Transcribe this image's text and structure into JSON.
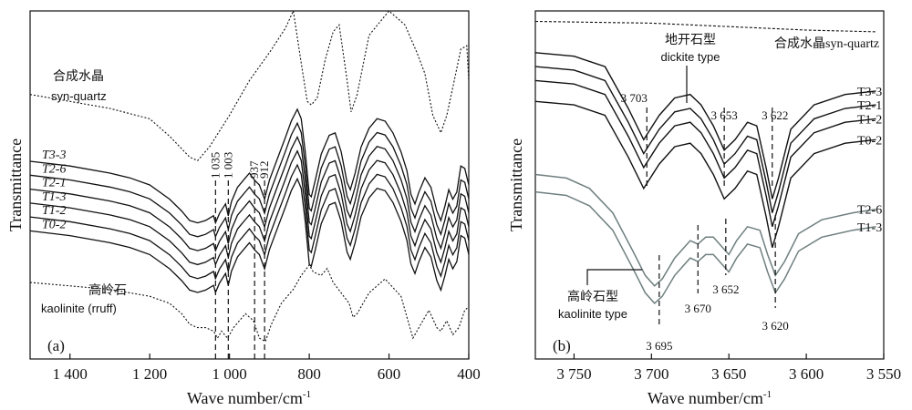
{
  "chart_data": [
    {
      "panel_label": "(a)",
      "type": "line",
      "xlabel": "Wave number/cm",
      "xlabel_sup": "-1",
      "ylabel": "Transmittance",
      "xlim": [
        1500,
        400
      ],
      "x_reversed": true,
      "xticks": [
        {
          "v": 1400,
          "label": "1 400"
        },
        {
          "v": 1200,
          "label": "1 200"
        },
        {
          "v": 1000,
          "label": "1 000"
        },
        {
          "v": 800,
          "label": "800"
        },
        {
          "v": 600,
          "label": "600"
        },
        {
          "v": 400,
          "label": "400"
        }
      ],
      "reference_spectra": [
        {
          "label_cn": "合成水晶",
          "label_en": "syn-quartz",
          "style": "dotted",
          "points": [
            [
              1500,
              0.76
            ],
            [
              1400,
              0.74
            ],
            [
              1300,
              0.72
            ],
            [
              1200,
              0.69
            ],
            [
              1150,
              0.64
            ],
            [
              1100,
              0.58
            ],
            [
              1080,
              0.57
            ],
            [
              1050,
              0.61
            ],
            [
              1000,
              0.7
            ],
            [
              950,
              0.8
            ],
            [
              900,
              0.88
            ],
            [
              860,
              0.95
            ],
            [
              840,
              1.0
            ],
            [
              820,
              0.85
            ],
            [
              805,
              0.74
            ],
            [
              795,
              0.73
            ],
            [
              780,
              0.75
            ],
            [
              760,
              0.86
            ],
            [
              740,
              0.94
            ],
            [
              725,
              0.96
            ],
            [
              705,
              0.8
            ],
            [
              695,
              0.71
            ],
            [
              680,
              0.76
            ],
            [
              650,
              0.93
            ],
            [
              600,
              1.0
            ],
            [
              560,
              0.96
            ],
            [
              530,
              0.88
            ],
            [
              510,
              0.82
            ],
            [
              490,
              0.7
            ],
            [
              470,
              0.65
            ],
            [
              455,
              0.7
            ],
            [
              440,
              0.78
            ],
            [
              420,
              0.89
            ],
            [
              405,
              0.9
            ],
            [
              400,
              0.8
            ]
          ]
        },
        {
          "label_cn": "高岭石",
          "label_en": "kaolinite (rruff)",
          "style": "dotted",
          "points": [
            [
              1500,
              0.22
            ],
            [
              1400,
              0.21
            ],
            [
              1300,
              0.2
            ],
            [
              1200,
              0.18
            ],
            [
              1150,
              0.16
            ],
            [
              1120,
              0.13
            ],
            [
              1100,
              0.1
            ],
            [
              1080,
              0.09
            ],
            [
              1060,
              0.09
            ],
            [
              1040,
              0.08
            ],
            [
              1030,
              0.06
            ],
            [
              1020,
              0.08
            ],
            [
              1005,
              0.06
            ],
            [
              990,
              0.09
            ],
            [
              960,
              0.13
            ],
            [
              940,
              0.11
            ],
            [
              925,
              0.06
            ],
            [
              910,
              0.05
            ],
            [
              895,
              0.1
            ],
            [
              870,
              0.16
            ],
            [
              840,
              0.2
            ],
            [
              820,
              0.24
            ],
            [
              800,
              0.27
            ],
            [
              790,
              0.25
            ],
            [
              770,
              0.24
            ],
            [
              755,
              0.26
            ],
            [
              740,
              0.22
            ],
            [
              700,
              0.16
            ],
            [
              690,
              0.12
            ],
            [
              680,
              0.13
            ],
            [
              650,
              0.19
            ],
            [
              610,
              0.23
            ],
            [
              570,
              0.18
            ],
            [
              550,
              0.1
            ],
            [
              540,
              0.06
            ],
            [
              525,
              0.09
            ],
            [
              500,
              0.14
            ],
            [
              480,
              0.09
            ],
            [
              470,
              0.08
            ],
            [
              455,
              0.11
            ],
            [
              440,
              0.07
            ],
            [
              425,
              0.09
            ],
            [
              410,
              0.14
            ],
            [
              400,
              0.15
            ]
          ]
        }
      ],
      "series": [
        {
          "name": "T3-3",
          "offset": 0.22
        },
        {
          "name": "T2-6",
          "offset": 0.18
        },
        {
          "name": "T2-1",
          "offset": 0.14
        },
        {
          "name": "T1-3",
          "offset": 0.1
        },
        {
          "name": "T1-2",
          "offset": 0.06
        },
        {
          "name": "T0-2",
          "offset": 0.02
        }
      ],
      "sample_profile": [
        [
          1500,
          0.6
        ],
        [
          1400,
          0.58
        ],
        [
          1300,
          0.55
        ],
        [
          1250,
          0.53
        ],
        [
          1200,
          0.5
        ],
        [
          1150,
          0.44
        ],
        [
          1120,
          0.39
        ],
        [
          1100,
          0.35
        ],
        [
          1080,
          0.34
        ],
        [
          1060,
          0.35
        ],
        [
          1040,
          0.37
        ],
        [
          1035,
          0.34
        ],
        [
          1025,
          0.38
        ],
        [
          1010,
          0.42
        ],
        [
          1003,
          0.37
        ],
        [
          995,
          0.43
        ],
        [
          980,
          0.49
        ],
        [
          960,
          0.53
        ],
        [
          950,
          0.55
        ],
        [
          937,
          0.52
        ],
        [
          925,
          0.5
        ],
        [
          912,
          0.44
        ],
        [
          900,
          0.52
        ],
        [
          880,
          0.61
        ],
        [
          860,
          0.7
        ],
        [
          845,
          0.77
        ],
        [
          830,
          0.82
        ],
        [
          820,
          0.78
        ],
        [
          810,
          0.64
        ],
        [
          800,
          0.46
        ],
        [
          795,
          0.45
        ],
        [
          785,
          0.52
        ],
        [
          770,
          0.63
        ],
        [
          750,
          0.71
        ],
        [
          735,
          0.72
        ],
        [
          720,
          0.64
        ],
        [
          705,
          0.51
        ],
        [
          697,
          0.48
        ],
        [
          685,
          0.55
        ],
        [
          670,
          0.66
        ],
        [
          650,
          0.74
        ],
        [
          630,
          0.78
        ],
        [
          610,
          0.77
        ],
        [
          590,
          0.72
        ],
        [
          570,
          0.64
        ],
        [
          555,
          0.56
        ],
        [
          545,
          0.46
        ],
        [
          535,
          0.42
        ],
        [
          525,
          0.47
        ],
        [
          510,
          0.53
        ],
        [
          495,
          0.49
        ],
        [
          480,
          0.39
        ],
        [
          470,
          0.35
        ],
        [
          460,
          0.41
        ],
        [
          450,
          0.48
        ],
        [
          440,
          0.44
        ],
        [
          430,
          0.47
        ],
        [
          420,
          0.58
        ],
        [
          410,
          0.57
        ],
        [
          400,
          0.5
        ]
      ],
      "markers": [
        {
          "x": 1035,
          "label": "1 035"
        },
        {
          "x": 1003,
          "label": "1 003"
        },
        {
          "x": 937,
          "label": "937"
        },
        {
          "x": 912,
          "label": "912"
        }
      ]
    },
    {
      "panel_label": "(b)",
      "type": "line",
      "xlabel": "Wave number/cm",
      "xlabel_sup": "-1",
      "ylabel": "Transmittance",
      "xlim": [
        3775,
        3550
      ],
      "x_reversed": true,
      "xticks": [
        {
          "v": 3750,
          "label": "3 750"
        },
        {
          "v": 3700,
          "label": "3 700"
        },
        {
          "v": 3650,
          "label": "3 650"
        },
        {
          "v": 3600,
          "label": "3 600"
        },
        {
          "v": 3550,
          "label": "3 550"
        }
      ],
      "reference_spectra": [
        {
          "label_cn": "合成水晶",
          "label_en": "syn-quartz",
          "style": "dotted",
          "points": [
            [
              3775,
              0.97
            ],
            [
              3700,
              0.965
            ],
            [
              3650,
              0.955
            ],
            [
              3600,
              0.945
            ],
            [
              3555,
              0.94
            ]
          ]
        }
      ],
      "dickite_series": [
        {
          "name": "T3-3",
          "offset": 0.1
        },
        {
          "name": "T2-1",
          "offset": 0.06
        },
        {
          "name": "T1-2",
          "offset": 0.02
        },
        {
          "name": "T0-2",
          "offset": -0.04
        }
      ],
      "dickite_profile": [
        [
          3775,
          0.78
        ],
        [
          3750,
          0.77
        ],
        [
          3730,
          0.74
        ],
        [
          3715,
          0.62
        ],
        [
          3705,
          0.53
        ],
        [
          3695,
          0.6
        ],
        [
          3685,
          0.65
        ],
        [
          3675,
          0.66
        ],
        [
          3668,
          0.63
        ],
        [
          3660,
          0.57
        ],
        [
          3653,
          0.5
        ],
        [
          3646,
          0.53
        ],
        [
          3638,
          0.58
        ],
        [
          3632,
          0.57
        ],
        [
          3626,
          0.45
        ],
        [
          3622,
          0.36
        ],
        [
          3618,
          0.42
        ],
        [
          3610,
          0.56
        ],
        [
          3595,
          0.63
        ],
        [
          3575,
          0.66
        ],
        [
          3555,
          0.67
        ]
      ],
      "kaolinite_series": [
        {
          "name": "T2-6",
          "offset": 0.0,
          "color": "#6f7f7f"
        },
        {
          "name": "T1-3",
          "offset": -0.05,
          "color": "#6f7f7f"
        }
      ],
      "kaolinite_profile": [
        [
          3775,
          0.53
        ],
        [
          3755,
          0.52
        ],
        [
          3740,
          0.49
        ],
        [
          3725,
          0.42
        ],
        [
          3712,
          0.31
        ],
        [
          3704,
          0.24
        ],
        [
          3698,
          0.21
        ],
        [
          3693,
          0.23
        ],
        [
          3685,
          0.29
        ],
        [
          3675,
          0.34
        ],
        [
          3670,
          0.33
        ],
        [
          3665,
          0.35
        ],
        [
          3660,
          0.35
        ],
        [
          3654,
          0.32
        ],
        [
          3650,
          0.3
        ],
        [
          3645,
          0.34
        ],
        [
          3638,
          0.38
        ],
        [
          3630,
          0.37
        ],
        [
          3625,
          0.3
        ],
        [
          3620,
          0.24
        ],
        [
          3614,
          0.28
        ],
        [
          3605,
          0.36
        ],
        [
          3590,
          0.4
        ],
        [
          3570,
          0.42
        ],
        [
          3555,
          0.43
        ]
      ],
      "markers": [
        {
          "x": 3703,
          "label": "3 703",
          "group": "upper"
        },
        {
          "x": 3653,
          "label": "3 653",
          "group": "upper"
        },
        {
          "x": 3622,
          "label": "3 622",
          "group": "upper"
        },
        {
          "x": 3695,
          "label": "3 695",
          "group": "lower"
        },
        {
          "x": 3670,
          "label": "3 670",
          "group": "lower"
        },
        {
          "x": 3652,
          "label": "3 652",
          "group": "lower"
        },
        {
          "x": 3620,
          "label": "3 620",
          "group": "lower"
        }
      ],
      "annotations": {
        "dickite_cn": "地开石型",
        "dickite_en": "dickite type",
        "kaolinite_cn": "高岭石型",
        "kaolinite_en": "kaolinite type",
        "quartz_label": "合成水晶syn-quartz"
      }
    }
  ]
}
